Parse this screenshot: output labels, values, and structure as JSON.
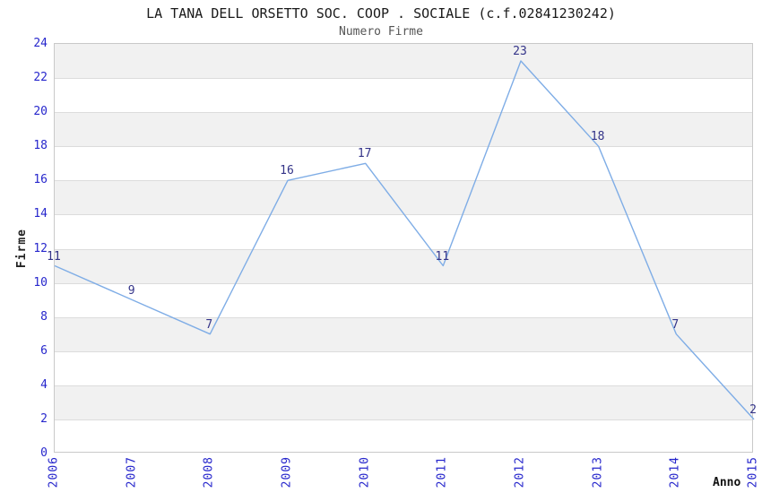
{
  "header": {
    "title": "LA TANA DELL ORSETTO SOC. COOP . SOCIALE (c.f.02841230242)",
    "subtitle": "Numero Firme"
  },
  "chart_data": {
    "type": "line",
    "categories": [
      "2006",
      "2007",
      "2008",
      "2009",
      "2010",
      "2011",
      "2012",
      "2013",
      "2014",
      "2015"
    ],
    "series": [
      {
        "name": "Numero Firme",
        "values": [
          11,
          9,
          7,
          16,
          17,
          11,
          23,
          18,
          7,
          2
        ]
      }
    ],
    "point_labels": [
      "11",
      "9",
      "7",
      "16",
      "17",
      "11",
      "23",
      "18",
      "7",
      "2"
    ],
    "title": "LA TANA DELL ORSETTO SOC. COOP . SOCIALE (c.f.02841230242)",
    "subtitle": "Numero Firme",
    "xlabel": "Anno",
    "ylabel": "Firme",
    "ylim": [
      0,
      24
    ],
    "ytick_step": 2,
    "yticks": [
      "0",
      "2",
      "4",
      "6",
      "8",
      "10",
      "12",
      "14",
      "16",
      "18",
      "20",
      "22",
      "24"
    ],
    "grid": "alternating horizontal bands every 2 units, gray on 2-4,6-8,10-12,14-16,18-20,22-24",
    "legend": "none",
    "colors": {
      "line": "#7fade6",
      "tick_label": "#2626cc",
      "point_label": "#333388",
      "band_gray": "#f1f1f1",
      "gridline": "#dcdcdc",
      "plot_border": "#c9c9c9",
      "title": "#1a1a1a",
      "subtitle": "#555555",
      "axis_title": "#222222"
    }
  }
}
